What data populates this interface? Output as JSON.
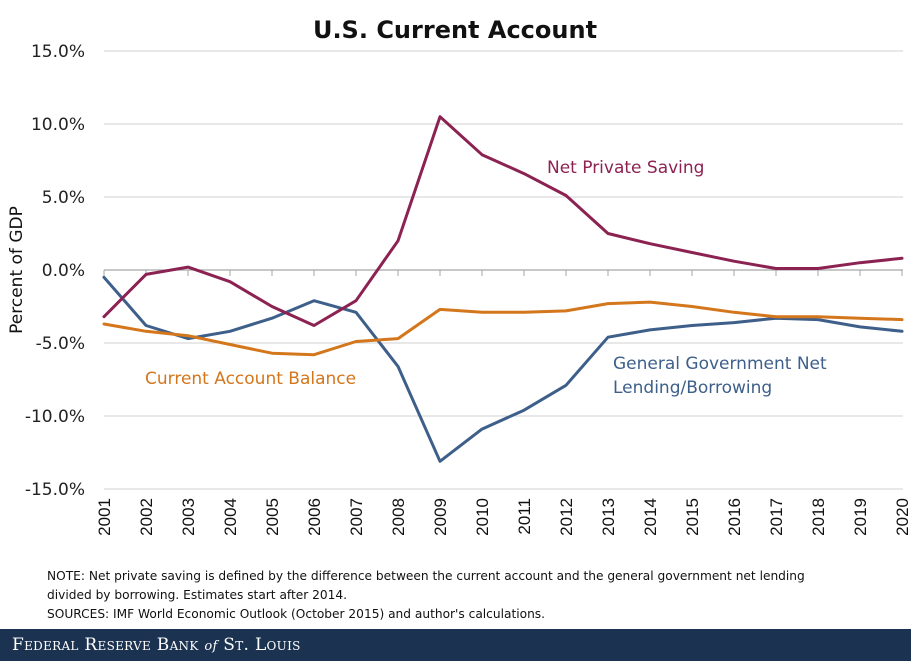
{
  "chart_data": {
    "type": "line",
    "title": "U.S. Current Account",
    "xlabel": "",
    "ylabel": "Percent of GDP",
    "ylim": [
      -15,
      15
    ],
    "yticks": [
      15,
      10,
      5,
      0,
      -5,
      -10,
      -15
    ],
    "ytick_labels": [
      "15.0%",
      "10.0%",
      "5.0%",
      "0.0%",
      "-5.0%",
      "-10.0%",
      "-15.0%"
    ],
    "grid": true,
    "legend": "none (inline labels)",
    "categories": [
      "2001",
      "2002",
      "2003",
      "2004",
      "2005",
      "2006",
      "2007",
      "2008",
      "2009",
      "2010",
      "2011",
      "2012",
      "2013",
      "2014",
      "2015",
      "2016",
      "2017",
      "2018",
      "2019",
      "2020"
    ],
    "series": [
      {
        "name": "Net Private Saving",
        "color": "#8b2252",
        "values": [
          -3.2,
          -0.3,
          0.2,
          -0.8,
          -2.5,
          -3.8,
          -2.1,
          2.0,
          10.5,
          7.9,
          6.6,
          5.1,
          2.5,
          1.8,
          1.2,
          0.6,
          0.1,
          0.1,
          0.5,
          0.8
        ]
      },
      {
        "name": "Current Account Balance",
        "color": "#d4761c",
        "values": [
          -3.7,
          -4.2,
          -4.5,
          -5.1,
          -5.7,
          -5.8,
          -4.9,
          -4.7,
          -2.7,
          -2.9,
          -2.9,
          -2.8,
          -2.3,
          -2.2,
          -2.5,
          -2.9,
          -3.2,
          -3.2,
          -3.3,
          -3.4
        ]
      },
      {
        "name": "General Government Net Lending/Borrowing",
        "color": "#3d5f8a",
        "values": [
          -0.5,
          -3.8,
          -4.7,
          -4.2,
          -3.3,
          -2.1,
          -2.9,
          -6.6,
          -13.1,
          -10.9,
          -9.6,
          -7.9,
          -4.6,
          -4.1,
          -3.8,
          -3.6,
          -3.3,
          -3.4,
          -3.9,
          -4.2
        ]
      }
    ],
    "annotations": [
      {
        "series": "Net Private Saving",
        "lines": [
          "Net Private Saving"
        ],
        "color": "#8b2252"
      },
      {
        "series": "Current Account Balance",
        "lines": [
          "Current Account Balance"
        ],
        "color": "#d4761c"
      },
      {
        "series": "General Government Net Lending/Borrowing",
        "lines": [
          "General Government Net",
          "Lending/Borrowing"
        ],
        "color": "#3d5f8a"
      }
    ]
  },
  "notes": {
    "line1": "NOTE: Net private saving is defined by the difference between the current account and the general government net lending",
    "line2": "divided by borrowing.  Estimates start after 2014.",
    "line3": "SOURCES: IMF World Economic Outlook (October 2015) and author's calculations."
  },
  "footer": {
    "logo_part1": "Federal Reserve Bank ",
    "logo_of": "of",
    "logo_part2": " St. Louis",
    "background": "#1b3350"
  }
}
